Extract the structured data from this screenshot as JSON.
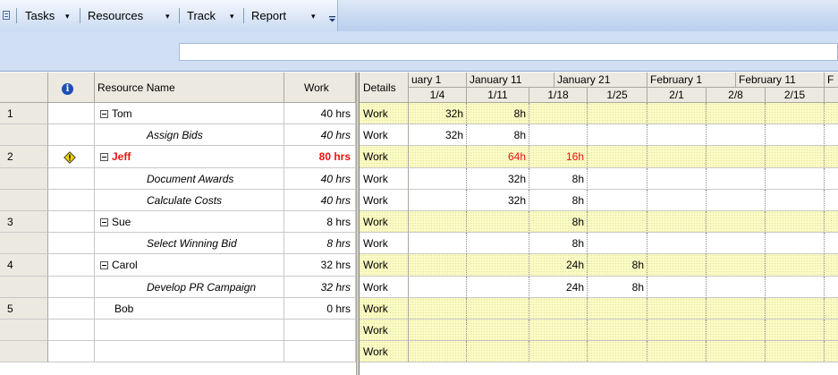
{
  "toolbar": {
    "tasks_label": "Tasks",
    "resources_label": "Resources",
    "track_label": "Track",
    "report_label": "Report",
    "dropdown_glyph": "▾"
  },
  "sheet": {
    "headers": {
      "info": "i",
      "name": "Resource Name",
      "work": "Work"
    },
    "rows": [
      {
        "num": "1",
        "name": "Tom",
        "work": "40 hrs",
        "kind": "resource"
      },
      {
        "num": "",
        "name": "Assign Bids",
        "work": "40 hrs",
        "kind": "assignment"
      },
      {
        "num": "2",
        "name": "Jeff",
        "work": "80 hrs",
        "kind": "resource-overallocated",
        "indicator": "warning-icon"
      },
      {
        "num": "",
        "name": "Document Awards",
        "work": "40 hrs",
        "kind": "assignment"
      },
      {
        "num": "",
        "name": "Calculate Costs",
        "work": "40 hrs",
        "kind": "assignment"
      },
      {
        "num": "3",
        "name": "Sue",
        "work": "8 hrs",
        "kind": "resource"
      },
      {
        "num": "",
        "name": "Select Winning Bid",
        "work": "8 hrs",
        "kind": "assignment"
      },
      {
        "num": "4",
        "name": "Carol",
        "work": "32 hrs",
        "kind": "resource"
      },
      {
        "num": "",
        "name": "Develop PR Campaign",
        "work": "32 hrs",
        "kind": "assignment"
      },
      {
        "num": "5",
        "name": "Bob",
        "work": "0 hrs",
        "kind": "resource-nochild"
      },
      {
        "num": "",
        "name": "",
        "work": "",
        "kind": "blank"
      },
      {
        "num": "",
        "name": "",
        "work": "",
        "kind": "blank"
      }
    ]
  },
  "usage": {
    "details_header": "Details",
    "top_periods": [
      "uary 1",
      "January 11",
      "January 21",
      "February 1",
      "February 11",
      "F"
    ],
    "weeks": [
      "1/4",
      "1/11",
      "1/18",
      "1/25",
      "2/1",
      "2/8",
      "2/15"
    ],
    "detail_label": "Work",
    "rows": [
      {
        "cells": [
          "32h",
          "8h",
          "",
          "",
          "",
          "",
          "",
          ""
        ]
      },
      {
        "cells": [
          "32h",
          "8h",
          "",
          "",
          "",
          "",
          "",
          ""
        ]
      },
      {
        "cells": [
          "",
          "64h",
          "16h",
          "",
          "",
          "",
          "",
          ""
        ],
        "overallocated": true
      },
      {
        "cells": [
          "",
          "32h",
          "8h",
          "",
          "",
          "",
          "",
          ""
        ]
      },
      {
        "cells": [
          "",
          "32h",
          "8h",
          "",
          "",
          "",
          "",
          ""
        ]
      },
      {
        "cells": [
          "",
          "",
          "8h",
          "",
          "",
          "",
          "",
          ""
        ]
      },
      {
        "cells": [
          "",
          "",
          "8h",
          "",
          "",
          "",
          "",
          ""
        ]
      },
      {
        "cells": [
          "",
          "",
          "24h",
          "8h",
          "",
          "",
          "",
          ""
        ]
      },
      {
        "cells": [
          "",
          "",
          "24h",
          "8h",
          "",
          "",
          "",
          ""
        ]
      },
      {
        "cells": [
          "",
          "",
          "",
          "",
          "",
          "",
          "",
          ""
        ]
      },
      {
        "cells": [
          "",
          "",
          "",
          "",
          "",
          "",
          "",
          ""
        ]
      },
      {
        "cells": [
          "",
          "",
          "",
          "",
          "",
          "",
          "",
          ""
        ]
      }
    ]
  },
  "colors": {
    "overallocated": "#ee1212",
    "resource_row_bg": "#fbfbc6"
  }
}
